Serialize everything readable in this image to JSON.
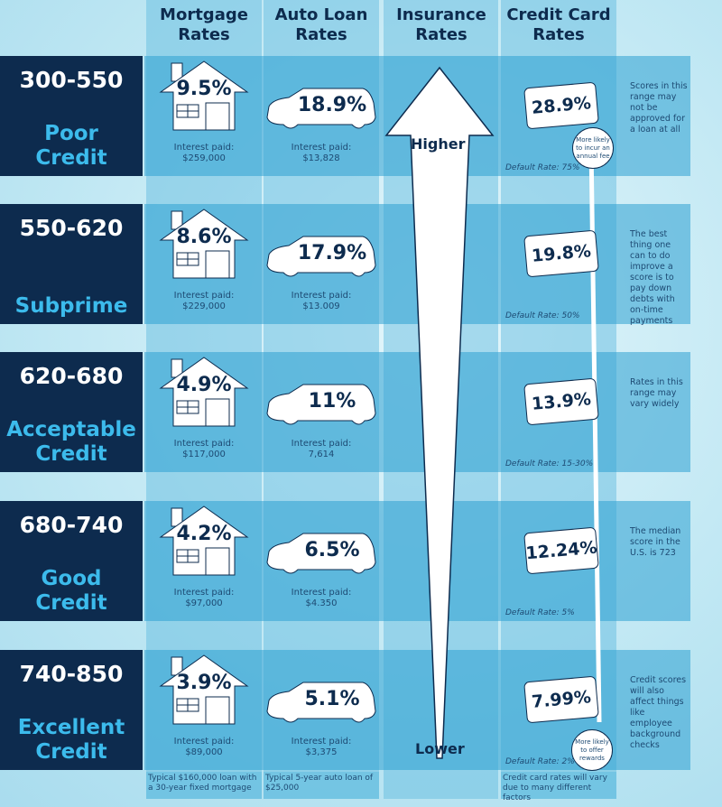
{
  "headers": [
    "Mortgage\nRates",
    "Auto Loan\nRates",
    "Insurance\nRates",
    "Credit Card\nRates"
  ],
  "insurance": {
    "high": "Higher",
    "low": "Lower"
  },
  "rows": [
    {
      "range": "300-550",
      "tier": "Poor\nCredit",
      "mortgage": "9.5%",
      "mortgage_paid": "Interest paid:\n$259,000",
      "auto": "18.9%",
      "auto_paid": "Interest paid:\n$13,828",
      "card": "28.9%",
      "default": "Default Rate: 75%",
      "note": "Scores in this range may not be approved for a loan at all"
    },
    {
      "range": "550-620",
      "tier": "Subprime",
      "mortgage": "8.6%",
      "mortgage_paid": "Interest paid:\n$229,000",
      "auto": "17.9%",
      "auto_paid": "Interest paid:\n$13.009",
      "card": "19.8%",
      "default": "Default Rate: 50%",
      "note": "The best thing one can to do improve a score is to pay down debts with on-time payments"
    },
    {
      "range": "620-680",
      "tier": "Acceptable\nCredit",
      "mortgage": "4.9%",
      "mortgage_paid": "Interest paid:\n$117,000",
      "auto": "11%",
      "auto_paid": "Interest paid:\n7,614",
      "card": "13.9%",
      "default": "Default Rate: 15-30%",
      "note": "Rates in this range may vary widely"
    },
    {
      "range": "680-740",
      "tier": "Good\nCredit",
      "mortgage": "4.2%",
      "mortgage_paid": "Interest paid:\n$97,000",
      "auto": "6.5%",
      "auto_paid": "Interest paid:\n$4.350",
      "card": "12.24%",
      "default": "Default Rate: 5%",
      "note": "The median score in the U.S. is 723"
    },
    {
      "range": "740-850",
      "tier": "Excellent\nCredit",
      "mortgage": "3.9%",
      "mortgage_paid": "Interest paid:\n$89,000",
      "auto": "5.1%",
      "auto_paid": "Interest paid:\n$3,375",
      "card": "7.99%",
      "default": "Default Rate: 2%",
      "note": "Credit scores will also affect things like employee background checks"
    }
  ],
  "bubbles": {
    "top": "More likely to incur an annual fee",
    "bottom": "More likely to offer rewards"
  },
  "footnotes": {
    "mortgage": "Typical $160,000 loan with a 30-year fixed mortgage",
    "auto": "Typical 5-year auto loan of $25,000",
    "card": "Credit card rates will vary due to many different factors"
  }
}
